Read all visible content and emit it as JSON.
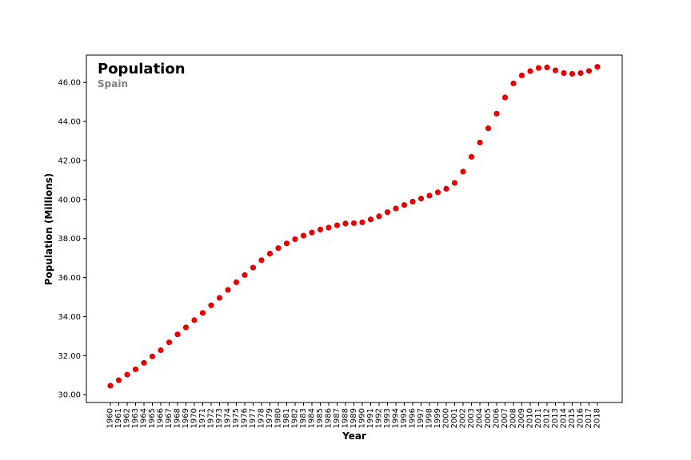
{
  "chart_data": {
    "type": "scatter",
    "title": "Population",
    "subtitle": "Spain",
    "xlabel": "Year",
    "ylabel": "Population (Millions)",
    "ylim": [
      29.6,
      47.4
    ],
    "yticks": [
      30,
      32,
      34,
      36,
      38,
      40,
      42,
      44,
      46
    ],
    "ytick_format": "2 decimals",
    "grid": false,
    "legend": "none",
    "marker_color": "#e60000",
    "series": [
      {
        "x": [
          "1960",
          "1961",
          "1962",
          "1963",
          "1964",
          "1965",
          "1966",
          "1967",
          "1968",
          "1969",
          "1970",
          "1971",
          "1972",
          "1973",
          "1974",
          "1975",
          "1976",
          "1977",
          "1978",
          "1979",
          "1980",
          "1981",
          "1982",
          "1983",
          "1984",
          "1985",
          "1986",
          "1987",
          "1988",
          "1989",
          "1990",
          "1991",
          "1992",
          "1993",
          "1994",
          "1995",
          "1996",
          "1997",
          "1998",
          "1999",
          "2000",
          "2001",
          "2002",
          "2003",
          "2004",
          "2005",
          "2006",
          "2007",
          "2008",
          "2009",
          "2010",
          "2011",
          "2012",
          "2013",
          "2014",
          "2015",
          "2016",
          "2017",
          "2018"
        ],
        "values": [
          30.46,
          30.74,
          31.03,
          31.3,
          31.63,
          31.96,
          32.28,
          32.68,
          33.09,
          33.45,
          33.82,
          34.19,
          34.58,
          34.96,
          35.37,
          35.76,
          36.13,
          36.51,
          36.89,
          37.23,
          37.51,
          37.75,
          37.97,
          38.15,
          38.31,
          38.46,
          38.56,
          38.68,
          38.77,
          38.79,
          38.83,
          38.98,
          39.14,
          39.35,
          39.54,
          39.72,
          39.89,
          40.05,
          40.2,
          40.37,
          40.55,
          40.85,
          41.43,
          42.19,
          42.92,
          43.65,
          44.4,
          45.23,
          45.95,
          46.36,
          46.58,
          46.74,
          46.77,
          46.62,
          46.48,
          46.44,
          46.48,
          46.59,
          46.8
        ]
      }
    ]
  }
}
